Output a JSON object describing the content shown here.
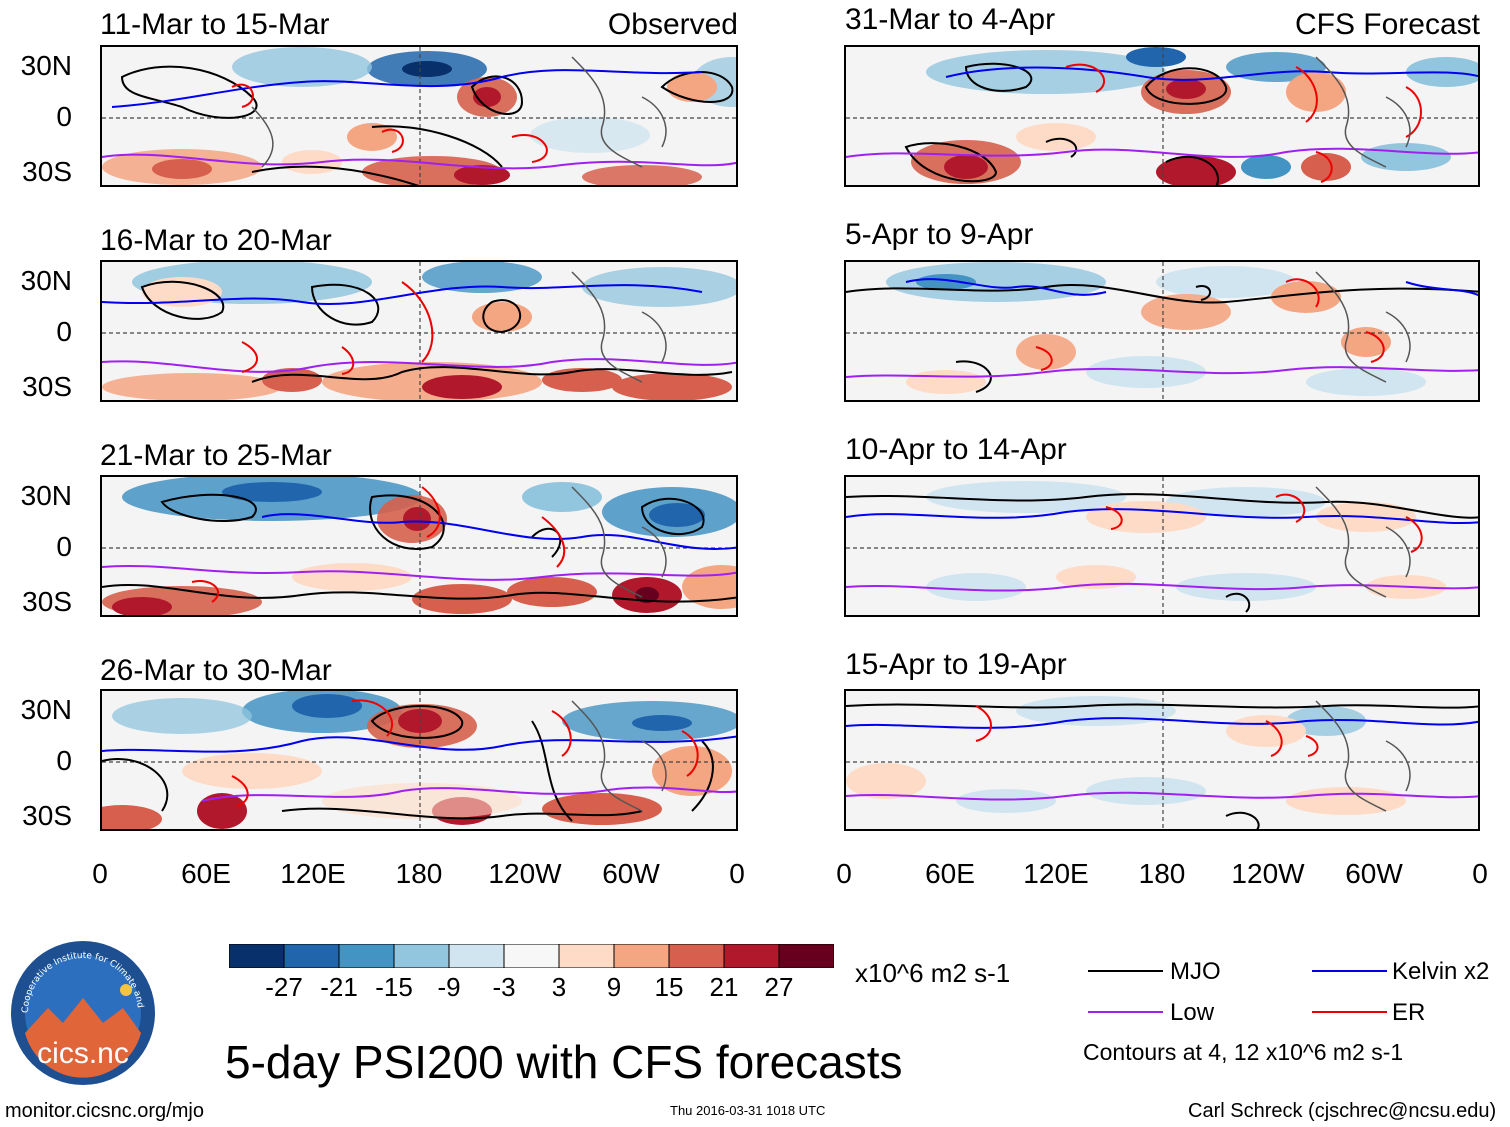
{
  "headings": {
    "observed": "Observed",
    "forecast": "CFS Forecast"
  },
  "panels": [
    {
      "title": "11-Mar to 15-Mar"
    },
    {
      "title": "16-Mar to 20-Mar"
    },
    {
      "title": "21-Mar to 25-Mar"
    },
    {
      "title": "26-Mar to 30-Mar"
    },
    {
      "title": "31-Mar to 4-Apr"
    },
    {
      "title": "5-Apr to 9-Apr"
    },
    {
      "title": "10-Apr to 14-Apr"
    },
    {
      "title": "15-Apr to 19-Apr"
    }
  ],
  "lat_labels": [
    "30N",
    "0",
    "30S"
  ],
  "lon_labels": [
    "0",
    "60E",
    "120E",
    "180",
    "120W",
    "60W",
    "0"
  ],
  "colorbar": {
    "colors": [
      "#08306b",
      "#2166ac",
      "#4393c3",
      "#92c5de",
      "#d1e5f0",
      "#f7f7f7",
      "#fddbc7",
      "#f4a582",
      "#d6604d",
      "#b2182b",
      "#67001f"
    ],
    "labels": [
      "-27",
      "-21",
      "-15",
      "-9",
      "-3",
      "3",
      "9",
      "15",
      "21",
      "27"
    ],
    "units": "x10^6 m2 s-1"
  },
  "legend": {
    "items": [
      {
        "label": "MJO",
        "color": "#000000"
      },
      {
        "label": "Kelvin x2",
        "color": "#0000ee"
      },
      {
        "label": "Low",
        "color": "#a020f0"
      },
      {
        "label": "ER",
        "color": "#ee0000"
      }
    ],
    "note": "Contours at 4, 12 x10^6 m2 s-1"
  },
  "main_title": "5-day PSI200 with CFS forecasts",
  "logo_text": "cics.nc",
  "logo_ring_text": "Cooperative Institute for Climate and Satellites",
  "footer": {
    "url": "monitor.cicsnc.org/mjo",
    "timestamp": "Thu 2016-03-31 1018 UTC",
    "author": "Carl Schreck (cjschrec@ncsu.edu)"
  }
}
